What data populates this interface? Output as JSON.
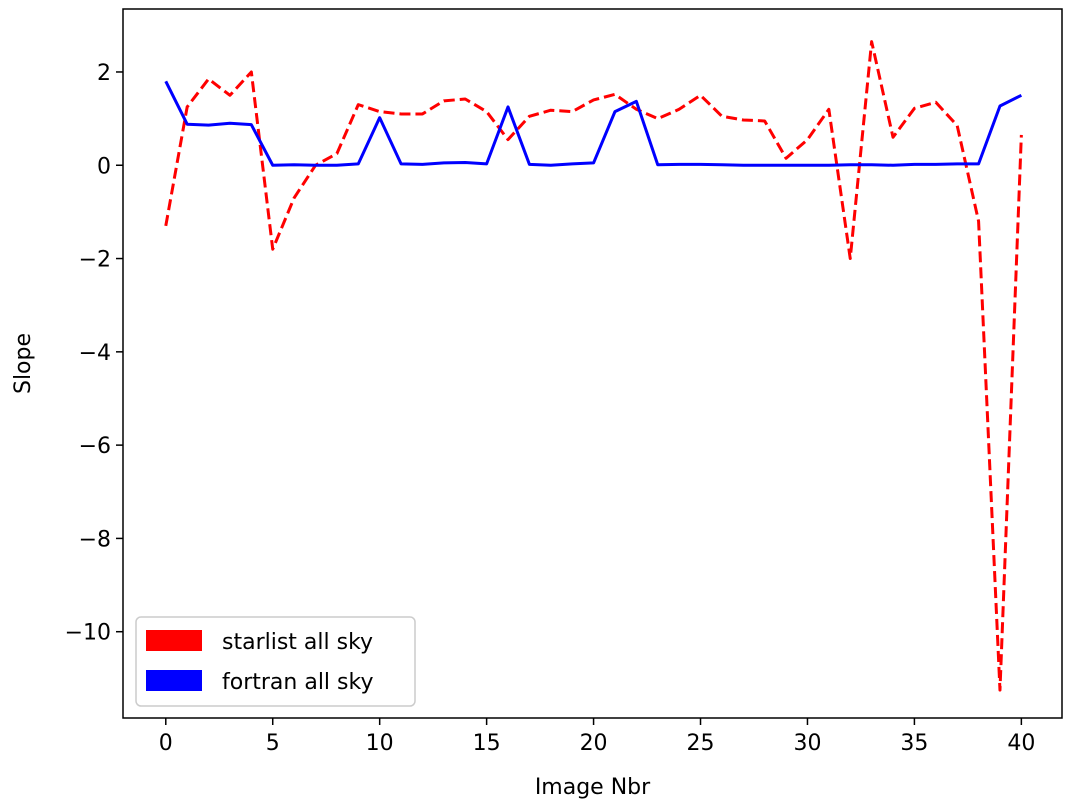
{
  "chart_data": {
    "type": "line",
    "title": "",
    "xlabel": "Image Nbr",
    "ylabel": "Slope",
    "xlim": [
      -2,
      41.9
    ],
    "ylim": [
      -11.85,
      3.35
    ],
    "x_ticks": [
      0,
      5,
      10,
      15,
      20,
      25,
      30,
      35,
      40
    ],
    "x_tick_labels": [
      "0",
      "5",
      "10",
      "15",
      "20",
      "25",
      "30",
      "35",
      "40"
    ],
    "y_ticks": [
      2,
      0,
      -2,
      -4,
      -6,
      -8,
      -10
    ],
    "y_tick_labels": [
      "2",
      "0",
      "−2",
      "−4",
      "−6",
      "−8",
      "−10"
    ],
    "grid": false,
    "legend_position": "lower-left",
    "x": [
      0,
      1,
      2,
      3,
      4,
      5,
      6,
      7,
      8,
      9,
      10,
      11,
      12,
      13,
      14,
      15,
      16,
      17,
      18,
      19,
      20,
      21,
      22,
      23,
      24,
      25,
      26,
      27,
      28,
      29,
      30,
      31,
      32,
      33,
      34,
      35,
      36,
      37,
      38,
      39,
      40
    ],
    "series": [
      {
        "name": "starlist all sky",
        "color": "#ff0000",
        "style": "dashed",
        "values": [
          -1.3,
          1.25,
          1.85,
          1.5,
          2.0,
          -1.8,
          -0.7,
          0.0,
          0.25,
          1.3,
          1.15,
          1.1,
          1.1,
          1.38,
          1.42,
          1.15,
          0.55,
          1.05,
          1.18,
          1.15,
          1.4,
          1.52,
          1.2,
          1.0,
          1.2,
          1.5,
          1.05,
          0.97,
          0.95,
          0.15,
          0.55,
          1.2,
          -2.0,
          2.65,
          0.6,
          1.22,
          1.35,
          0.85,
          -1.2,
          -11.25,
          0.65
        ]
      },
      {
        "name": "fortran all sky",
        "color": "#0000ff",
        "style": "solid",
        "values": [
          1.8,
          0.88,
          0.86,
          0.9,
          0.87,
          0.0,
          0.01,
          0.0,
          0.0,
          0.03,
          1.02,
          0.03,
          0.02,
          0.05,
          0.06,
          0.03,
          1.25,
          0.02,
          0.0,
          0.03,
          0.05,
          1.15,
          1.37,
          0.01,
          0.02,
          0.02,
          0.01,
          0.0,
          0.0,
          0.0,
          0.0,
          0.0,
          0.01,
          0.01,
          0.0,
          0.02,
          0.02,
          0.03,
          0.03,
          1.27,
          1.5
        ]
      }
    ]
  }
}
